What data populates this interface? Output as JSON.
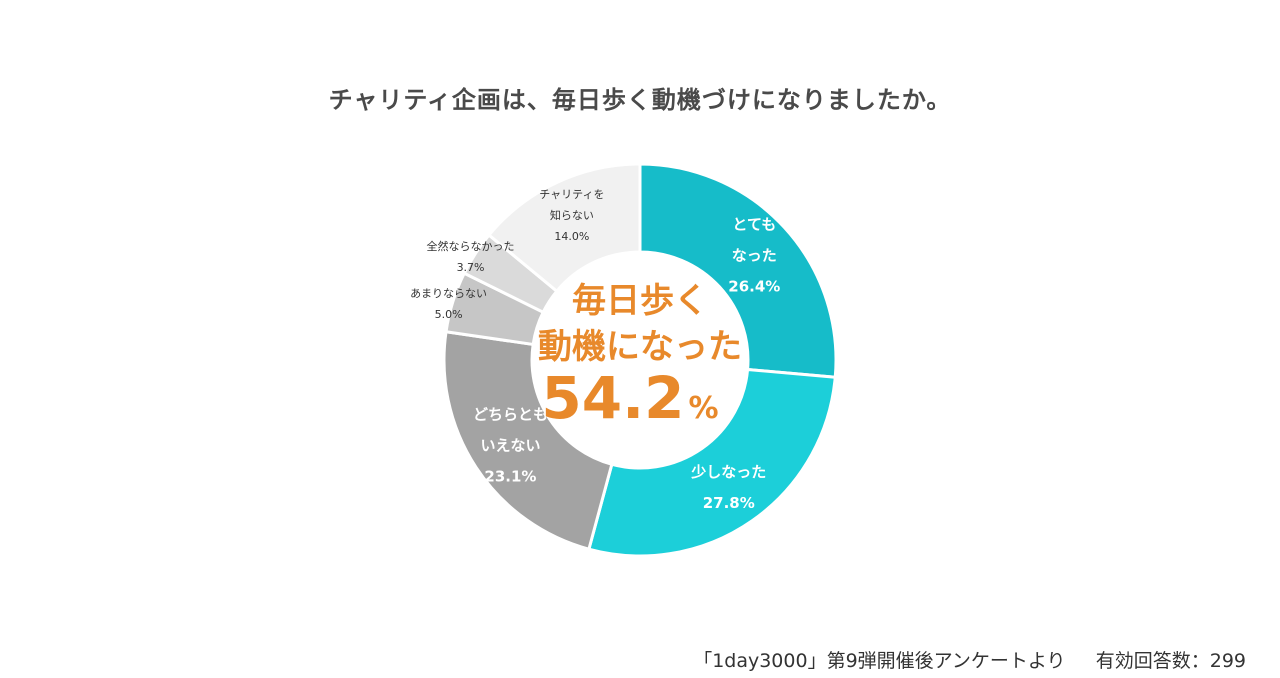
{
  "title": "チャリティ企画は、毎日歩く動機づけになりましたか。",
  "center": {
    "line1": "毎日歩く",
    "line2": "動機になった",
    "value": "54.2",
    "unit": "%"
  },
  "footer": {
    "source": "「1day3000」第9弾開催後アンケートより",
    "respondents": "有効回答数：299"
  },
  "colors": {
    "accent": "#e8892b",
    "title": "#4a4a4a"
  },
  "chart_data": {
    "type": "pie",
    "variant": "donut",
    "slices": [
      {
        "label_lines": [
          "とても",
          "なった"
        ],
        "value": 26.4,
        "value_label": "26.4%",
        "color": "#16bcc9",
        "label_color": "#ffffff"
      },
      {
        "label_lines": [
          "少しなった"
        ],
        "value": 27.8,
        "value_label": "27.8%",
        "color": "#1ccfd9",
        "label_color": "#ffffff"
      },
      {
        "label_lines": [
          "どちらとも",
          "いえない"
        ],
        "value": 23.1,
        "value_label": "23.1%",
        "color": "#a3a3a3",
        "label_color": "#ffffff"
      },
      {
        "label_lines": [
          "あまりならない"
        ],
        "value": 5.0,
        "value_label": "5.0%",
        "color": "#c6c6c6",
        "label_color": "#333333"
      },
      {
        "label_lines": [
          "全然ならなかった"
        ],
        "value": 3.7,
        "value_label": "3.7%",
        "color": "#dadada",
        "label_color": "#333333"
      },
      {
        "label_lines": [
          "チャリティを",
          "知らない"
        ],
        "value": 14.0,
        "value_label": "14.0%",
        "color": "#f1f1f1",
        "label_color": "#333333"
      }
    ]
  }
}
